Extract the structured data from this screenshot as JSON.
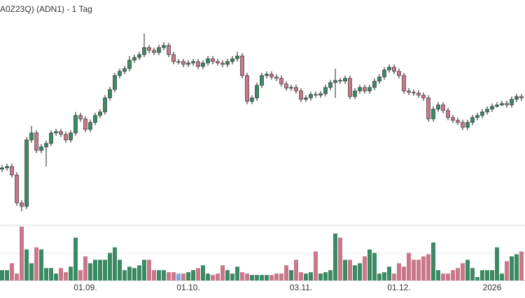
{
  "chart_data": {
    "type": "candlestick",
    "title": "A0Z23Q) (ADN1) - 1 Tag",
    "open": [
      78,
      80,
      82,
      70,
      30,
      25,
      120,
      130,
      105,
      110,
      115,
      130,
      132,
      128,
      120,
      130,
      155,
      150,
      135,
      145,
      155,
      160,
      180,
      192,
      212,
      218,
      222,
      234,
      238,
      242,
      252,
      248,
      245,
      252,
      255,
      242,
      232,
      232,
      228,
      230,
      232,
      225,
      230,
      236,
      232,
      230,
      228,
      232,
      236,
      240,
      212,
      175,
      180,
      198,
      212,
      214,
      210,
      208,
      200,
      194,
      195,
      190,
      178,
      180,
      185,
      184,
      186,
      195,
      202,
      205,
      204,
      208,
      182,
      190,
      195,
      190,
      195,
      204,
      210,
      220,
      224,
      218,
      212,
      190,
      188,
      187,
      184,
      180,
      150,
      164,
      170,
      162,
      152,
      148,
      145,
      138,
      145,
      152,
      155,
      160,
      164,
      168,
      170,
      172,
      170,
      178,
      182
    ],
    "high": [
      84,
      86,
      86,
      74,
      34,
      124,
      140,
      134,
      114,
      119,
      134,
      136,
      136,
      132,
      134,
      160,
      159,
      154,
      149,
      159,
      164,
      184,
      196,
      216,
      222,
      226,
      240,
      242,
      246,
      272,
      256,
      252,
      256,
      260,
      259,
      246,
      236,
      236,
      234,
      236,
      236,
      234,
      240,
      240,
      236,
      234,
      236,
      240,
      246,
      244,
      216,
      184,
      202,
      216,
      218,
      218,
      214,
      212,
      204,
      199,
      199,
      194,
      184,
      189,
      189,
      190,
      199,
      206,
      222,
      209,
      212,
      212,
      194,
      199,
      199,
      199,
      208,
      214,
      224,
      228,
      228,
      222,
      216,
      194,
      192,
      191,
      188,
      184,
      168,
      174,
      174,
      166,
      156,
      152,
      149,
      149,
      156,
      159,
      164,
      168,
      172,
      174,
      176,
      176,
      182,
      186,
      186
    ],
    "low": [
      74,
      76,
      66,
      26,
      18,
      21,
      116,
      101,
      101,
      82,
      111,
      126,
      124,
      116,
      116,
      126,
      146,
      131,
      131,
      141,
      151,
      156,
      176,
      188,
      208,
      214,
      218,
      230,
      234,
      238,
      244,
      241,
      241,
      248,
      238,
      228,
      228,
      224,
      224,
      226,
      221,
      221,
      226,
      228,
      226,
      224,
      224,
      228,
      232,
      208,
      171,
      171,
      176,
      194,
      208,
      206,
      204,
      196,
      190,
      190,
      186,
      174,
      174,
      176,
      180,
      180,
      182,
      191,
      180,
      200,
      200,
      178,
      178,
      186,
      186,
      186,
      191,
      200,
      206,
      216,
      214,
      208,
      186,
      184,
      183,
      180,
      176,
      146,
      146,
      160,
      158,
      148,
      144,
      141,
      134,
      134,
      141,
      148,
      151,
      156,
      160,
      166,
      168,
      166,
      166,
      174,
      176
    ],
    "close": [
      80,
      82,
      70,
      30,
      25,
      120,
      130,
      105,
      110,
      115,
      130,
      132,
      128,
      120,
      130,
      155,
      150,
      135,
      145,
      155,
      160,
      180,
      192,
      212,
      218,
      222,
      234,
      238,
      242,
      252,
      248,
      245,
      252,
      255,
      242,
      232,
      232,
      228,
      230,
      232,
      225,
      230,
      236,
      232,
      230,
      228,
      232,
      236,
      240,
      212,
      175,
      180,
      198,
      212,
      214,
      210,
      208,
      200,
      194,
      195,
      190,
      178,
      180,
      185,
      184,
      186,
      195,
      202,
      205,
      204,
      208,
      182,
      190,
      195,
      190,
      195,
      204,
      210,
      220,
      224,
      218,
      212,
      190,
      188,
      187,
      184,
      180,
      150,
      164,
      170,
      162,
      152,
      148,
      145,
      138,
      145,
      152,
      155,
      160,
      164,
      168,
      170,
      172,
      170,
      178,
      182,
      180
    ],
    "up_color": "#3c8a63",
    "down_color": "#c9788a",
    "flat_color": "#7fa6dc",
    "ylim": [
      0,
      320
    ],
    "xticks": [
      {
        "value": 17,
        "label": "01.09."
      },
      {
        "value": 38,
        "label": "01.10."
      },
      {
        "value": 61,
        "label": "03.11."
      },
      {
        "value": 81,
        "label": "01.12."
      },
      {
        "value": 100,
        "label": "2026"
      }
    ],
    "volume": {
      "ylim": [
        0,
        80
      ],
      "values": [
        15,
        15,
        25,
        10,
        78,
        45,
        25,
        48,
        45,
        18,
        18,
        10,
        18,
        12,
        20,
        62,
        15,
        35,
        25,
        30,
        30,
        30,
        40,
        48,
        30,
        15,
        20,
        18,
        22,
        30,
        30,
        15,
        15,
        15,
        12,
        12,
        10,
        10,
        12,
        15,
        18,
        22,
        10,
        8,
        10,
        22,
        15,
        10,
        20,
        12,
        10,
        8,
        8,
        8,
        8,
        8,
        10,
        10,
        22,
        15,
        30,
        12,
        10,
        12,
        42,
        10,
        12,
        15,
        68,
        62,
        30,
        30,
        22,
        25,
        35,
        45,
        40,
        10,
        12,
        20,
        10,
        25,
        20,
        40,
        30,
        30,
        35,
        38,
        55,
        15,
        10,
        10,
        15,
        18,
        25,
        30,
        18,
        5,
        15,
        15,
        15,
        48,
        10,
        28,
        35,
        38,
        42
      ]
    }
  }
}
